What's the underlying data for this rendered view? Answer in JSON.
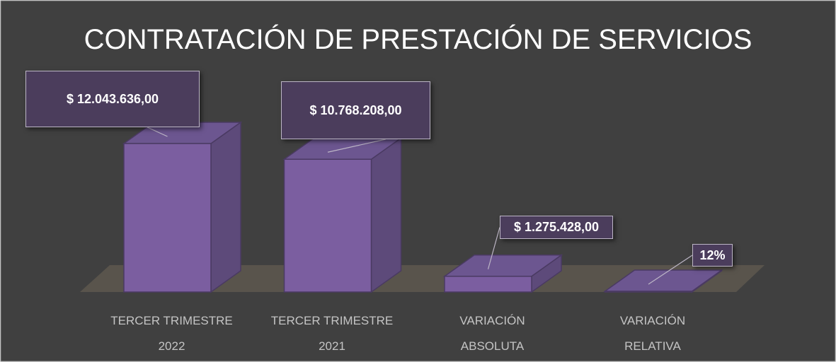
{
  "chart_data": {
    "type": "bar3d",
    "title": "CONTRATACIÓN DE PRESTACIÓN DE SERVICIOS",
    "categories": [
      "TERCER TRIMESTRE\n2022",
      "TERCER TRIMESTRE\n2021",
      "VARIACIÓN\nABSOLUTA",
      "VARIACIÓN\nRELATIVA"
    ],
    "values": [
      12043636,
      10768208,
      1275428,
      12
    ],
    "value_labels": [
      "$ 12.043.636,00",
      "$ 10.768.208,00",
      "$ 1.275.428,00",
      "12%"
    ],
    "color": "#7b5ea0"
  }
}
